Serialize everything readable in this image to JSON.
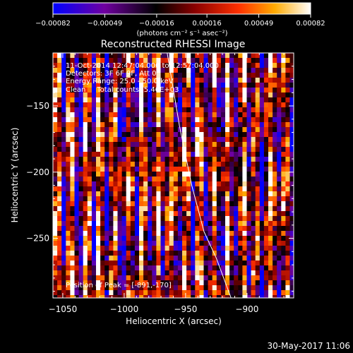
{
  "chart_data": {
    "type": "heatmap",
    "title": "Reconstructed RHESSI Image",
    "xlabel": "Heliocentric X (arcsec)",
    "ylabel": "Heliocentric Y (arcsec)",
    "xlim": [
      -1058,
      -862
    ],
    "ylim": [
      -295,
      -110
    ],
    "xticks": [
      -1050,
      -1000,
      -950,
      -900
    ],
    "yticks": [
      -150,
      -200,
      -250
    ],
    "xtick_labels": [
      "−1050",
      "−1000",
      "−950",
      "−900"
    ],
    "ytick_labels": [
      "−150",
      "−200",
      "−250"
    ],
    "colorbar": {
      "min": -0.00082,
      "max": 0.00082,
      "tick_values": [
        -0.00082,
        -0.00049,
        -0.00016,
        0.00016,
        0.00049,
        0.00082
      ],
      "tick_labels": [
        "−0.00082",
        "−0.00049",
        "−0.00016",
        "0.00016",
        "0.00049",
        "0.00082"
      ],
      "unit_label": "(photons cm⁻² s⁻¹ asec⁻²)",
      "colormap": [
        "#0000ff",
        "#7000a0",
        "#000000",
        "#8a0000",
        "#ff3000",
        "#ffaa00",
        "#ffffff"
      ]
    },
    "limb_curve": [
      [
        -965,
        -110
      ],
      [
        -955,
        -165
      ],
      [
        -945,
        -210
      ],
      [
        -935,
        -245
      ],
      [
        -925,
        -265
      ],
      [
        -913,
        -295
      ]
    ],
    "peak": [
      -891,
      -170
    ],
    "annotations": [
      "11-Oct-2014 12:47:04.000 to 12:57:04.000",
      "Detectors: 3F 6F 9F, Att 0",
      "Energy Range: 25.0 - 50.0 keV",
      "Clean     Total counts: 5.46E+03"
    ],
    "peak_text": "Position of Peak = [-891,-170]"
  },
  "footer": {
    "date": "30-May-2017 11:06"
  }
}
